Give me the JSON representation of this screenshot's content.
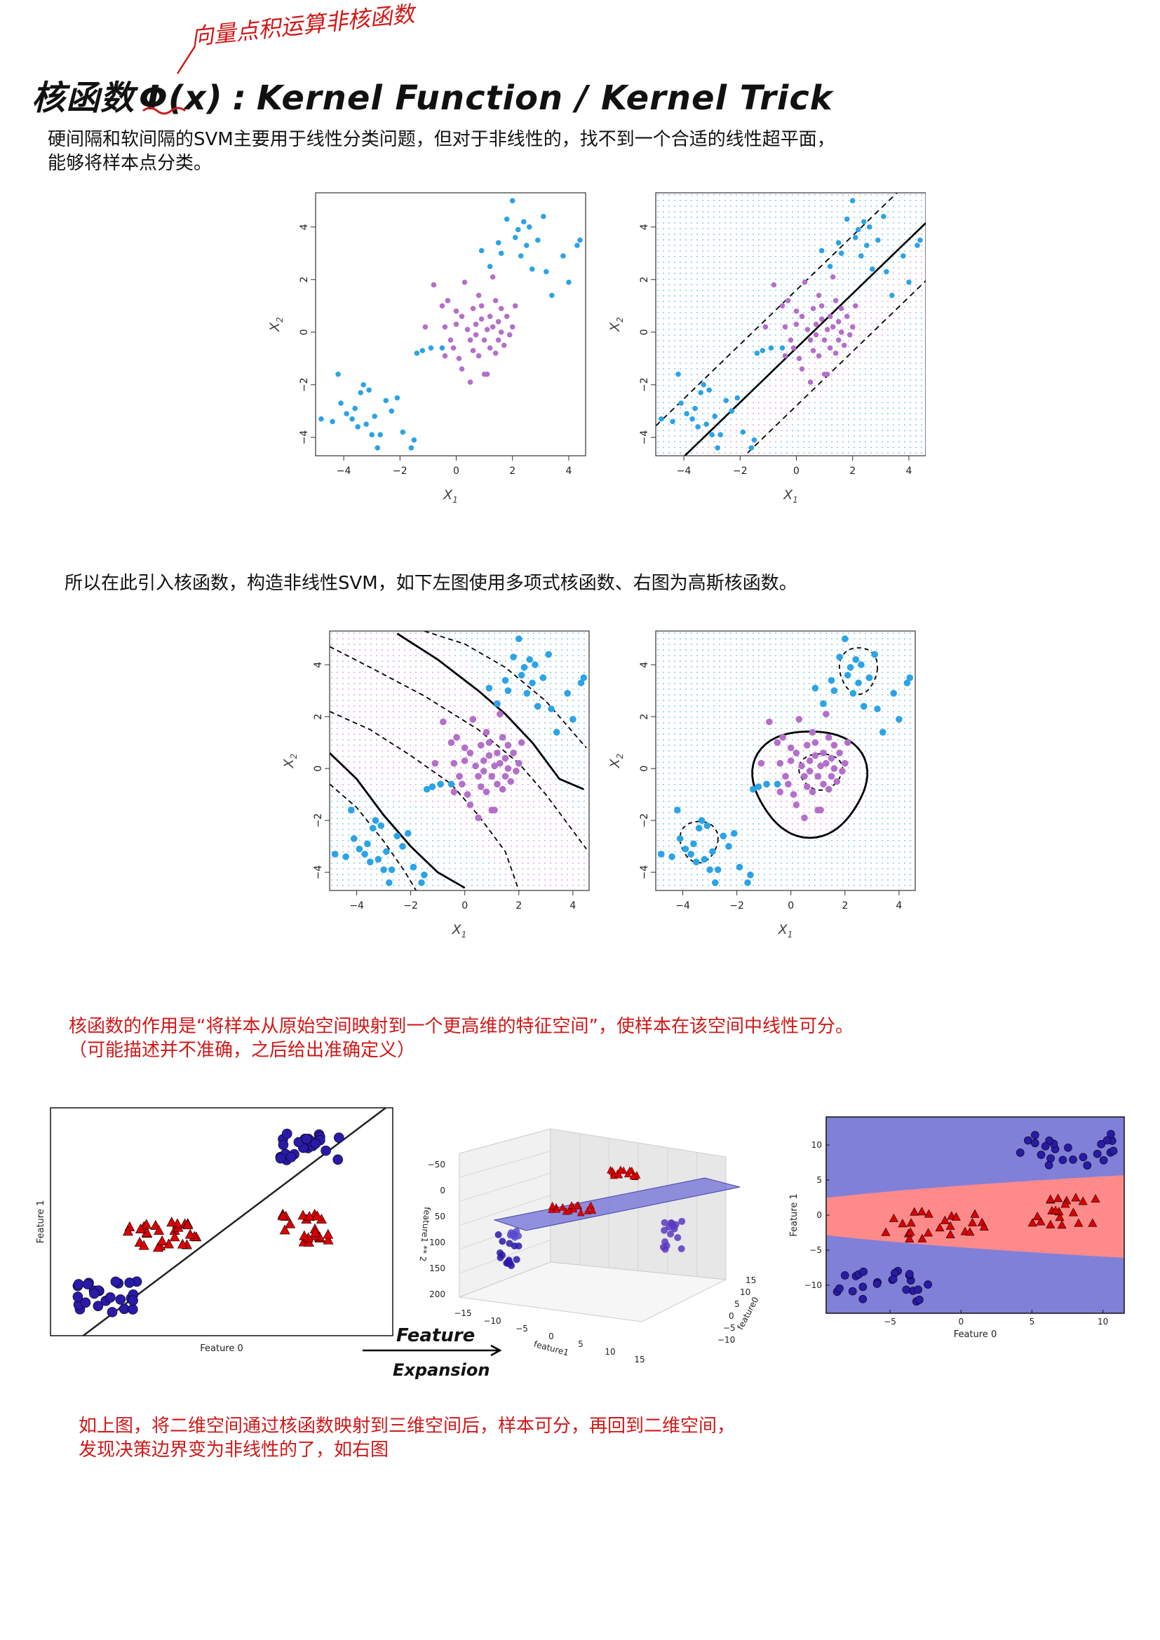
{
  "title": {
    "main": "核函数",
    "phi": "Φ(x)",
    "colon": ":",
    "english": "Kernel Function / Kernel Trick"
  },
  "annotation": "向量点积运算非核函数",
  "para1": {
    "line1": "硬间隔和软间隔的SVM主要用于线性分类问题，但对于非线性的，找不到一个合适的线性超平面，",
    "line2": "能够将样本点分类。"
  },
  "para2": "所以在此引入核函数，构造非线性SVM，如下左图使用多项式核函数、右图为高斯核函数。",
  "para3": {
    "line1": "核函数的作用是“将样本从原始空间映射到一个更高维的特征空间”，使样本在该空间中线性可分。",
    "line2": "（可能描述并不准确，之后给出准确定义）"
  },
  "para4": {
    "line1": "如上图，将二维空间通过核函数映射到三维空间后，样本可分，再回到二维空间，",
    "line2": "发现决策边界变为非线性的了，如右图"
  },
  "arrow_label": {
    "line1": "Feature",
    "line2": "Expansion"
  },
  "colors": {
    "blue": "#2ba3e6",
    "purple": "#b36fc9",
    "red": "#dd0000",
    "navy": "#2a1aa8",
    "annotation": "#d01818"
  },
  "chart_data": [
    {
      "id": "svm-scatter",
      "type": "scatter",
      "xlabel": "X1",
      "ylabel": "X2",
      "xticks": [
        "−4",
        "−2",
        "0",
        "2",
        "4"
      ],
      "yticks": [
        "−4",
        "−2",
        "0",
        "2",
        "4"
      ],
      "xlim": [
        -5,
        4.6
      ],
      "ylim": [
        -4.7,
        5.3
      ],
      "series": [
        {
          "color": "#2ba3e6",
          "points": [
            [
              -4.8,
              -3.3
            ],
            [
              -4.4,
              -3.4
            ],
            [
              -4.2,
              -1.6
            ],
            [
              -4.1,
              -2.7
            ],
            [
              -3.9,
              -3.1
            ],
            [
              -3.7,
              -3.3
            ],
            [
              -3.6,
              -2.9
            ],
            [
              -3.5,
              -3.6
            ],
            [
              -3.4,
              -2.3
            ],
            [
              -3.3,
              -2.0
            ],
            [
              -3.2,
              -3.5
            ],
            [
              -3.1,
              -2.2
            ],
            [
              -3.0,
              -3.9
            ],
            [
              -2.9,
              -3.2
            ],
            [
              -2.8,
              -4.4
            ],
            [
              -2.7,
              -3.9
            ],
            [
              -2.5,
              -2.6
            ],
            [
              -2.3,
              -3.0
            ],
            [
              -2.1,
              -2.5
            ],
            [
              -1.9,
              -3.8
            ],
            [
              -1.6,
              -4.4
            ],
            [
              -1.5,
              -4.1
            ],
            [
              -1.4,
              -0.8
            ],
            [
              -1.2,
              -0.7
            ],
            [
              -0.9,
              -0.6
            ],
            [
              -0.5,
              -0.6
            ],
            [
              0.9,
              3.1
            ],
            [
              1.2,
              2.5
            ],
            [
              1.5,
              3.4
            ],
            [
              1.6,
              3.0
            ],
            [
              1.8,
              4.3
            ],
            [
              2.0,
              5.0
            ],
            [
              2.1,
              3.6
            ],
            [
              2.2,
              3.9
            ],
            [
              2.3,
              2.9
            ],
            [
              2.4,
              4.2
            ],
            [
              2.5,
              3.3
            ],
            [
              2.6,
              4.0
            ],
            [
              2.7,
              2.4
            ],
            [
              2.9,
              3.5
            ],
            [
              3.1,
              4.4
            ],
            [
              3.2,
              2.3
            ],
            [
              3.4,
              1.4
            ],
            [
              3.8,
              2.9
            ],
            [
              4.0,
              1.9
            ],
            [
              4.3,
              3.3
            ],
            [
              4.4,
              3.5
            ]
          ]
        },
        {
          "color": "#b36fc9",
          "points": [
            [
              -1.1,
              0.2
            ],
            [
              -0.8,
              1.8
            ],
            [
              -0.5,
              1.0
            ],
            [
              -0.4,
              -0.9
            ],
            [
              -0.4,
              0.2
            ],
            [
              -0.2,
              -0.3
            ],
            [
              -0.1,
              -0.6
            ],
            [
              0.0,
              0.3
            ],
            [
              0.1,
              -1.0
            ],
            [
              0.2,
              0.6
            ],
            [
              0.2,
              -1.4
            ],
            [
              0.3,
              1.9
            ],
            [
              0.4,
              0.1
            ],
            [
              0.5,
              -0.3
            ],
            [
              0.5,
              -1.9
            ],
            [
              0.6,
              0.9
            ],
            [
              0.6,
              -0.7
            ],
            [
              0.7,
              0.3
            ],
            [
              0.7,
              -0.1
            ],
            [
              0.8,
              -0.9
            ],
            [
              0.8,
              1.4
            ],
            [
              0.9,
              0.5
            ],
            [
              0.9,
              1.0
            ],
            [
              1.0,
              -0.3
            ],
            [
              1.0,
              -1.6
            ],
            [
              1.1,
              0.1
            ],
            [
              1.1,
              -1.6
            ],
            [
              1.2,
              0.6
            ],
            [
              1.2,
              -0.6
            ],
            [
              1.3,
              0.2
            ],
            [
              1.3,
              2.1
            ],
            [
              1.4,
              -0.8
            ],
            [
              1.4,
              1.2
            ],
            [
              1.5,
              0.4
            ],
            [
              1.5,
              -0.3
            ],
            [
              1.6,
              0.9
            ],
            [
              1.6,
              0.0
            ],
            [
              1.7,
              -0.5
            ],
            [
              1.8,
              0.6
            ],
            [
              2.0,
              0.2
            ],
            [
              2.1,
              1.0
            ],
            [
              -0.3,
              1.2
            ],
            [
              0.0,
              0.8
            ],
            [
              1.9,
              -0.1
            ]
          ]
        }
      ]
    },
    {
      "id": "rbf-boundary",
      "type": "scatter",
      "xlabel": "Feature 0",
      "ylabel": "Feature 1",
      "xticks": [
        "−5",
        "0",
        "5",
        "10"
      ],
      "yticks": [
        "10",
        "5",
        "0",
        "−5",
        "−10"
      ],
      "xlim": [
        -9.5,
        11.5
      ],
      "ylim": [
        -14,
        14
      ]
    }
  ]
}
